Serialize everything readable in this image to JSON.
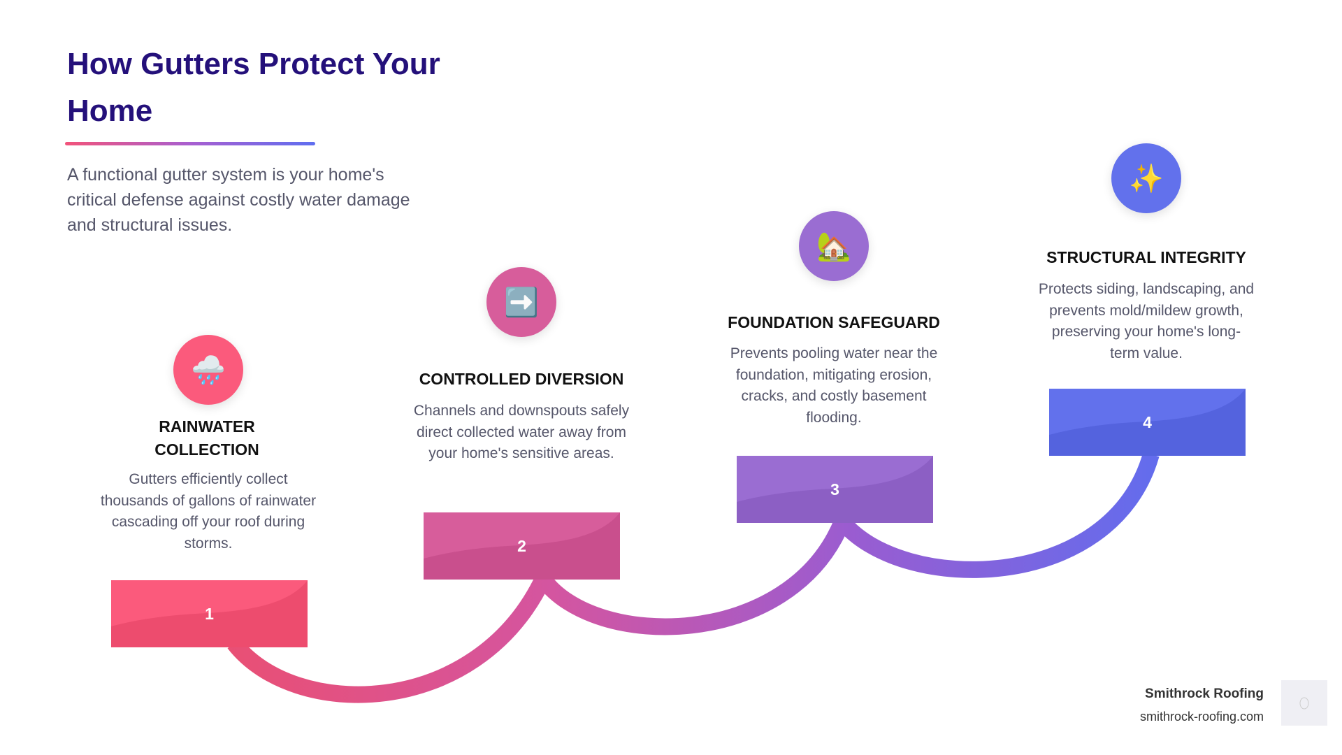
{
  "header": {
    "title": "How Gutters Protect Your Home",
    "intro": "A functional gutter system is your home's critical defense against costly water damage and structural issues."
  },
  "steps": [
    {
      "number": "1",
      "title": "Rainwater Collection",
      "description": "Gutters efficiently collect thousands of gallons of rainwater cascading off your roof during storms.",
      "icon": "rain-cloud-icon",
      "glyph": "🌧️",
      "color": "#fb5a7c"
    },
    {
      "number": "2",
      "title": "Controlled Diversion",
      "description": "Channels and downspouts safely direct collected water away from your home's sensitive areas.",
      "icon": "right-arrow-icon",
      "glyph": "➡️",
      "color": "#d75d9b"
    },
    {
      "number": "3",
      "title": "Foundation Safeguard",
      "description": "Prevents pooling water near the foundation, mitigating erosion, cracks, and costly basement flooding.",
      "icon": "house-with-garden-icon",
      "glyph": "🏡",
      "color": "#9a6dd2"
    },
    {
      "number": "4",
      "title": "Structural Integrity",
      "description": "Protects siding, landscaping, and prevents mold/mildew growth, preserving your home's long-term value.",
      "icon": "sparkles-icon",
      "glyph": "✨",
      "color": "#6271ec"
    }
  ],
  "footer": {
    "brand": "Smithrock Roofing",
    "url": "smithrock-roofing.com"
  }
}
